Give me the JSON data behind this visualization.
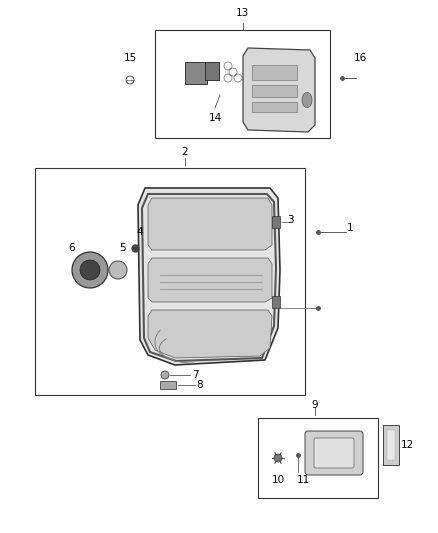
{
  "bg_color": "#ffffff",
  "fig_width": 4.38,
  "fig_height": 5.33,
  "dpi": 100
}
